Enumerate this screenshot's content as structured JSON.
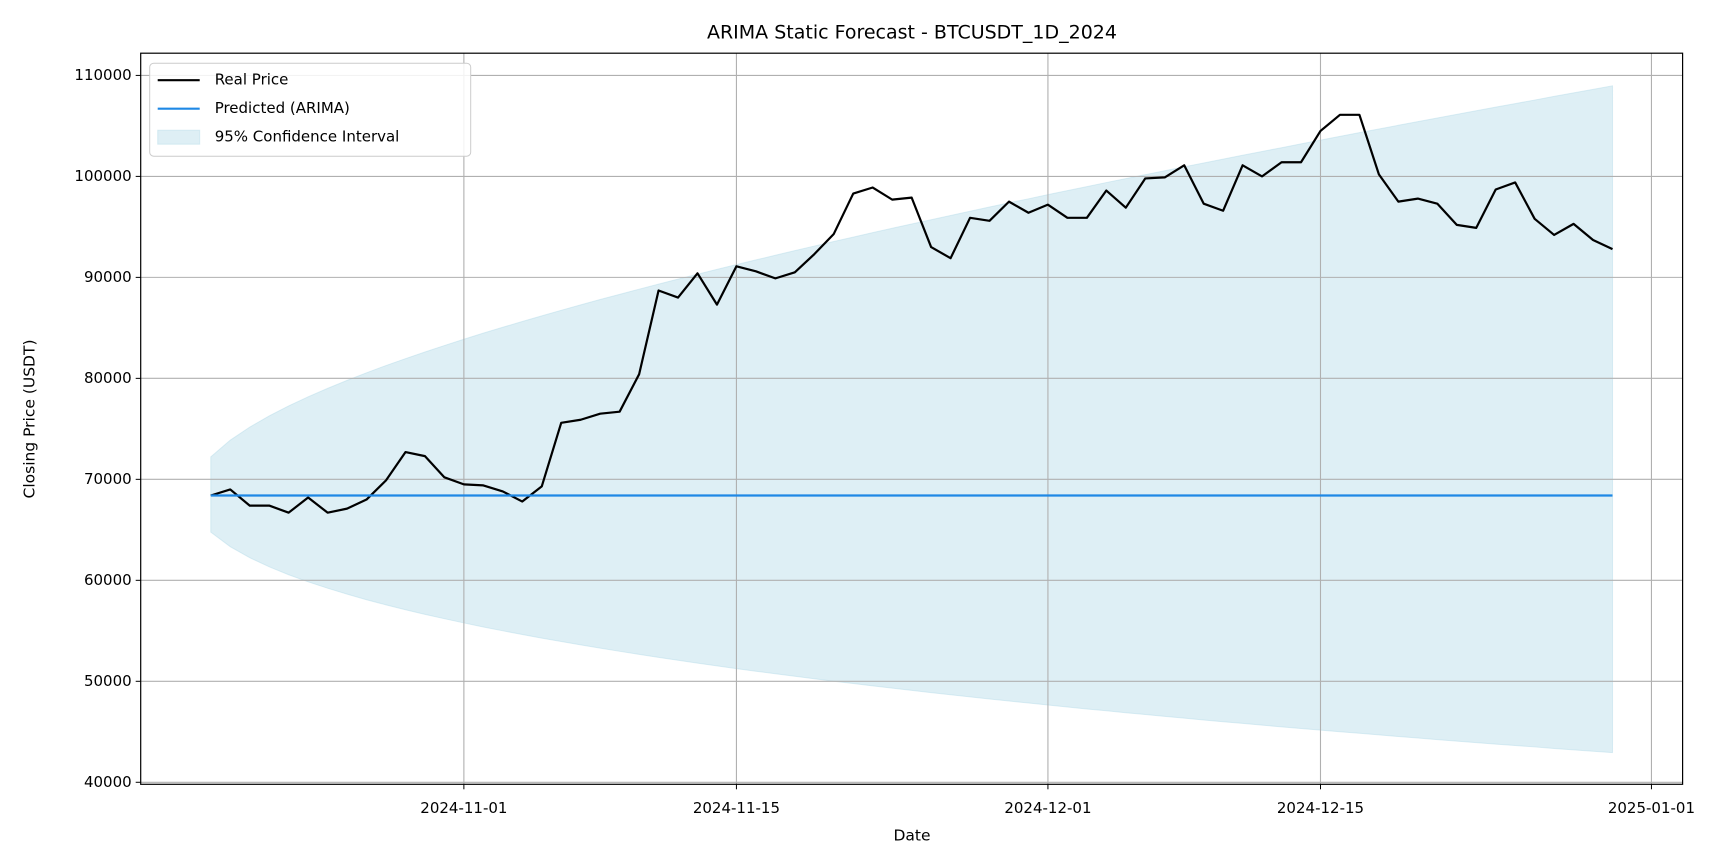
{
  "chart_data": {
    "type": "line",
    "title": "ARIMA Static Forecast - BTCUSDT_1D_2024",
    "xlabel": "Date",
    "ylabel": "Closing Price (USDT)",
    "x": [
      "2024-10-19",
      "2024-10-20",
      "2024-10-21",
      "2024-10-22",
      "2024-10-23",
      "2024-10-24",
      "2024-10-25",
      "2024-10-26",
      "2024-10-27",
      "2024-10-28",
      "2024-10-29",
      "2024-10-30",
      "2024-10-31",
      "2024-11-01",
      "2024-11-02",
      "2024-11-03",
      "2024-11-04",
      "2024-11-05",
      "2024-11-06",
      "2024-11-07",
      "2024-11-08",
      "2024-11-09",
      "2024-11-10",
      "2024-11-11",
      "2024-11-12",
      "2024-11-13",
      "2024-11-14",
      "2024-11-15",
      "2024-11-16",
      "2024-11-17",
      "2024-11-18",
      "2024-11-19",
      "2024-11-20",
      "2024-11-21",
      "2024-11-22",
      "2024-11-23",
      "2024-11-24",
      "2024-11-25",
      "2024-11-26",
      "2024-11-27",
      "2024-11-28",
      "2024-11-29",
      "2024-11-30",
      "2024-12-01",
      "2024-12-02",
      "2024-12-03",
      "2024-12-04",
      "2024-12-05",
      "2024-12-06",
      "2024-12-07",
      "2024-12-08",
      "2024-12-09",
      "2024-12-10",
      "2024-12-11",
      "2024-12-12",
      "2024-12-13",
      "2024-12-14",
      "2024-12-15",
      "2024-12-16",
      "2024-12-17",
      "2024-12-18",
      "2024-12-19",
      "2024-12-20",
      "2024-12-21",
      "2024-12-22",
      "2024-12-23",
      "2024-12-24",
      "2024-12-25",
      "2024-12-26",
      "2024-12-27",
      "2024-12-28",
      "2024-12-29",
      "2024-12-30"
    ],
    "series": [
      {
        "name": "Real Price",
        "color": "#000000",
        "values": [
          68400,
          69000,
          67400,
          67400,
          66700,
          68200,
          66700,
          67100,
          68000,
          69900,
          72700,
          72300,
          70200,
          69500,
          69400,
          68800,
          67800,
          69300,
          75600,
          75900,
          76500,
          76700,
          80400,
          88700,
          88000,
          90400,
          87300,
          91100,
          90600,
          89900,
          90500,
          92300,
          94300,
          98300,
          98900,
          97700,
          97900,
          93000,
          91900,
          95900,
          95600,
          97500,
          96400,
          97200,
          95900,
          95900,
          98600,
          96900,
          99800,
          99900,
          101100,
          97300,
          96600,
          101100,
          100000,
          101400,
          101400,
          104500,
          106100,
          106100,
          100200,
          97500,
          97800,
          97300,
          95200,
          94900,
          98700,
          99400,
          95800,
          94200,
          95300,
          93700,
          92800
        ]
      },
      {
        "name": "Predicted (ARIMA)",
        "color": "#1e88e5",
        "values": [
          68400,
          68400,
          68400,
          68400,
          68400,
          68400,
          68400,
          68400,
          68400,
          68400,
          68400,
          68400,
          68400,
          68400,
          68400,
          68400,
          68400,
          68400,
          68400,
          68400,
          68400,
          68400,
          68400,
          68400,
          68400,
          68400,
          68400,
          68400,
          68400,
          68400,
          68400,
          68400,
          68400,
          68400,
          68400,
          68400,
          68400,
          68400,
          68400,
          68400,
          68400,
          68400,
          68400,
          68400,
          68400,
          68400,
          68400,
          68400,
          68400,
          68400,
          68400,
          68400,
          68400,
          68400,
          68400,
          68400,
          68400,
          68400,
          68400,
          68400,
          68400,
          68400,
          68400,
          68400,
          68400,
          68400,
          68400,
          68400,
          68400,
          68400,
          68400,
          68400,
          68400
        ]
      }
    ],
    "band": {
      "name": "95% Confidence Interval",
      "color": "#add8e6",
      "upper": [
        72230,
        73880,
        75170,
        76280,
        77270,
        78170,
        79010,
        79800,
        80550,
        81270,
        81950,
        82610,
        83250,
        83870,
        84480,
        85060,
        85630,
        86190,
        86740,
        87280,
        87810,
        88320,
        88830,
        89330,
        89830,
        90310,
        90790,
        91260,
        91730,
        92190,
        92650,
        93100,
        93550,
        93990,
        94430,
        94860,
        95290,
        95710,
        96130,
        96550,
        96970,
        97380,
        97780,
        98190,
        98590,
        98990,
        99390,
        99780,
        100170,
        100560,
        100950,
        101330,
        101710,
        102090,
        102470,
        102840,
        103220,
        103590,
        103960,
        104330,
        104690,
        105060,
        105420,
        105780,
        106140,
        106500,
        106860,
        107210,
        107560,
        107920,
        108270,
        108620,
        108970
      ],
      "lower": [
        64770,
        63330,
        62240,
        61340,
        60550,
        59850,
        59220,
        58630,
        58080,
        57570,
        57090,
        56630,
        56200,
        55780,
        55380,
        55000,
        54630,
        54280,
        53940,
        53610,
        53280,
        52970,
        52670,
        52370,
        52090,
        51800,
        51530,
        51260,
        51000,
        50750,
        50500,
        50250,
        50010,
        49780,
        49550,
        49320,
        49100,
        48880,
        48670,
        48460,
        48250,
        48050,
        47850,
        47650,
        47460,
        47260,
        47080,
        46890,
        46710,
        46530,
        46350,
        46170,
        46000,
        45830,
        45660,
        45490,
        45330,
        45160,
        45000,
        44850,
        44690,
        44530,
        44380,
        44230,
        44080,
        43930,
        43780,
        43640,
        43500,
        43350,
        43210,
        43070,
        42940
      ]
    },
    "xlim": [
      "2024-10-15T09:36",
      "2025-01-02T14:24"
    ],
    "xticks": [
      "2024-11-01",
      "2024-11-15",
      "2024-12-01",
      "2024-12-15",
      "2025-01-01"
    ],
    "ylim": [
      39800,
      112200
    ],
    "yticks": [
      40000,
      50000,
      60000,
      70000,
      80000,
      90000,
      100000,
      110000
    ],
    "grid": true,
    "legend": "upper left"
  }
}
